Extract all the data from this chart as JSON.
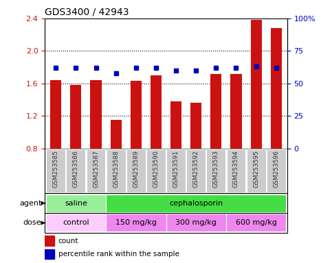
{
  "title": "GDS3400 / 42943",
  "samples": [
    "GSM253585",
    "GSM253586",
    "GSM253587",
    "GSM253588",
    "GSM253589",
    "GSM253590",
    "GSM253591",
    "GSM253592",
    "GSM253593",
    "GSM253594",
    "GSM253595",
    "GSM253596"
  ],
  "count_values": [
    1.64,
    1.58,
    1.64,
    1.15,
    1.63,
    1.7,
    1.38,
    1.36,
    1.72,
    1.72,
    2.38,
    2.28
  ],
  "percentile_values": [
    62,
    62,
    62,
    58,
    62,
    62,
    60,
    60,
    62,
    62,
    63,
    62
  ],
  "ylim_left": [
    0.8,
    2.4
  ],
  "ylim_right": [
    0,
    100
  ],
  "yticks_left": [
    0.8,
    1.2,
    1.6,
    2.0,
    2.4
  ],
  "yticks_right": [
    0,
    25,
    50,
    75,
    100
  ],
  "ytick_labels_right": [
    "0",
    "25",
    "50",
    "75",
    "100%"
  ],
  "bar_color": "#CC1111",
  "dot_color": "#0000BB",
  "agent_groups": [
    {
      "label": "saline",
      "start": 0,
      "end": 3,
      "color": "#99EE99"
    },
    {
      "label": "cephalosporin",
      "start": 3,
      "end": 12,
      "color": "#44DD44"
    }
  ],
  "dose_groups": [
    {
      "label": "control",
      "start": 0,
      "end": 3,
      "color": "#FFCCFF"
    },
    {
      "label": "150 mg/kg",
      "start": 3,
      "end": 6,
      "color": "#EE88EE"
    },
    {
      "label": "300 mg/kg",
      "start": 6,
      "end": 9,
      "color": "#EE88EE"
    },
    {
      "label": "600 mg/kg",
      "start": 9,
      "end": 12,
      "color": "#EE88EE"
    }
  ],
  "legend_count_color": "#CC1111",
  "legend_dot_color": "#0000BB",
  "bg_color": "#FFFFFF",
  "tick_label_color_left": "#CC1111",
  "tick_label_color_right": "#0000BB",
  "gridline_color": "#000000",
  "gridline_vals": [
    1.2,
    1.6,
    2.0
  ],
  "xlabel_bg_color": "#CCCCCC",
  "bar_width": 0.55
}
